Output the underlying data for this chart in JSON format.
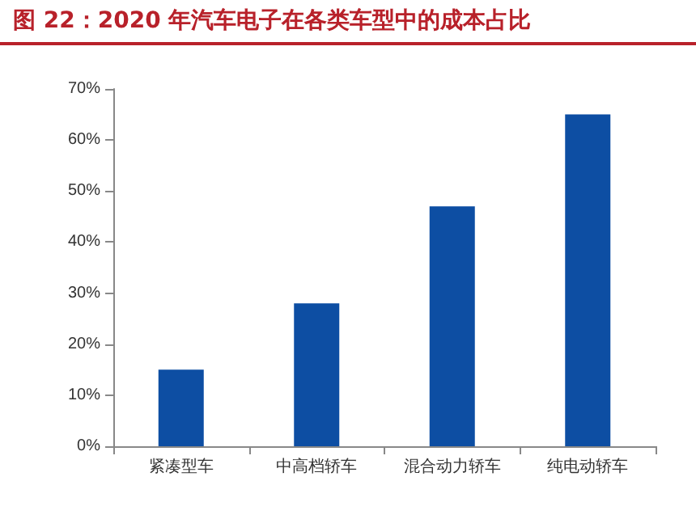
{
  "chart_data": {
    "type": "bar",
    "title": "图 22：2020 年汽车电子在各类车型中的成本占比",
    "categories": [
      "紧凑型车",
      "中高档轿车",
      "混合动力轿车",
      "纯电动轿车"
    ],
    "values": [
      15,
      28,
      47,
      65
    ],
    "color": "#0d4ea3",
    "ylim": [
      0,
      70
    ],
    "yticks": [
      {
        "value": 0,
        "label": "0%"
      },
      {
        "value": 10,
        "label": "10%"
      },
      {
        "value": 20,
        "label": "20%"
      },
      {
        "value": 30,
        "label": "30%"
      },
      {
        "value": 40,
        "label": "40%"
      },
      {
        "value": 50,
        "label": "50%"
      },
      {
        "value": 60,
        "label": "60%"
      },
      {
        "value": 70,
        "label": "70%"
      }
    ],
    "grid": false
  }
}
